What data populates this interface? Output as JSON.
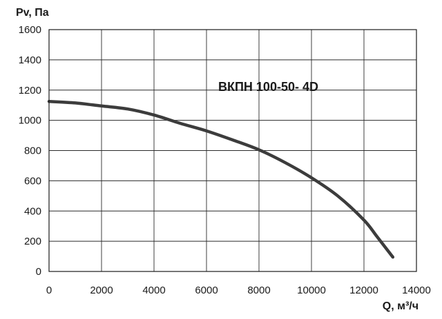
{
  "chart_data": {
    "type": "line",
    "title": "",
    "ylabel": "Pv, Па",
    "xlabel": "Q, м³/ч",
    "xlim": [
      0,
      14000
    ],
    "ylim": [
      0,
      1600
    ],
    "x_ticks": [
      0,
      2000,
      4000,
      6000,
      8000,
      10000,
      12000,
      14000
    ],
    "y_ticks": [
      0,
      200,
      400,
      600,
      800,
      1000,
      1200,
      1400,
      1600
    ],
    "x_tick_labels": [
      "0",
      "2000",
      "4000",
      "6000",
      "8000",
      "10000",
      "12000",
      "14000"
    ],
    "y_tick_labels": [
      "0",
      "200",
      "400",
      "600",
      "800",
      "1000",
      "1200",
      "1400",
      "1600"
    ],
    "grid": true,
    "series": [
      {
        "name": "ВКПН 100-50- 4D",
        "color": "#3c3c3c",
        "x": [
          0,
          1000,
          2000,
          3000,
          4000,
          5000,
          6000,
          7000,
          8000,
          9000,
          10000,
          11000,
          12000,
          12500,
          13100
        ],
        "y": [
          1125,
          1115,
          1095,
          1075,
          1035,
          980,
          930,
          870,
          805,
          720,
          620,
          500,
          340,
          230,
          95
        ]
      }
    ]
  }
}
